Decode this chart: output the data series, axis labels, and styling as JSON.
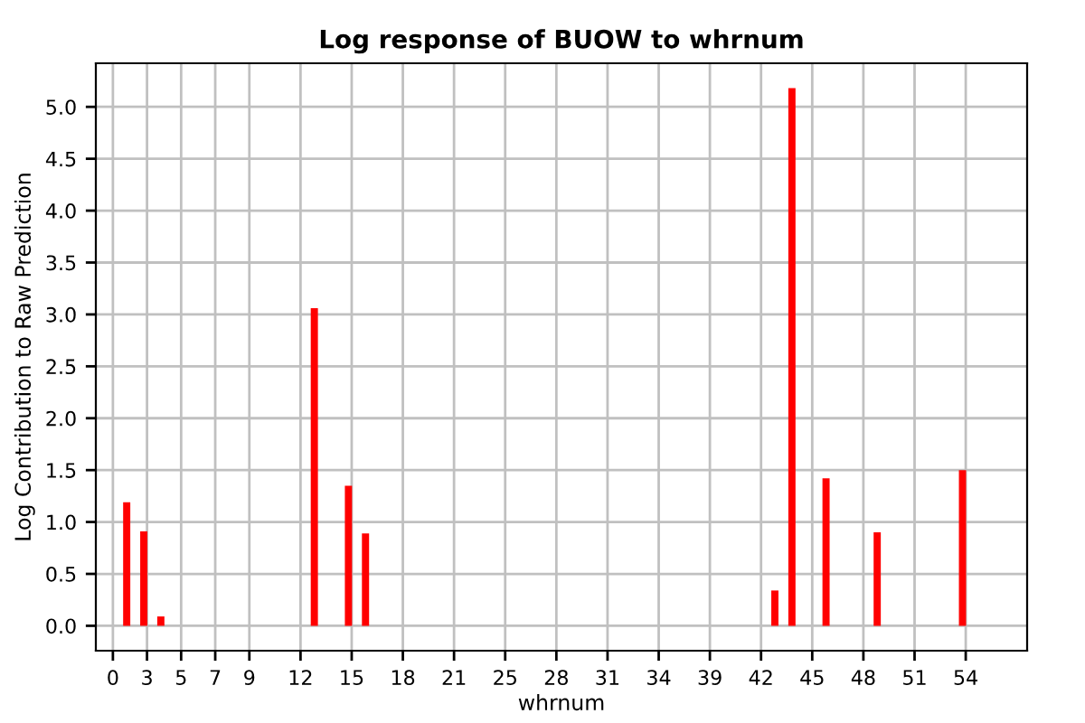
{
  "chart_data": {
    "type": "bar",
    "title": "Log response of BUOW to whrnum",
    "xlabel": "whrnum",
    "ylabel": "Log Contribution to Raw Prediction",
    "categories": [
      "0",
      null,
      "3",
      null,
      "5",
      null,
      "7",
      null,
      "9",
      null,
      null,
      "12",
      null,
      null,
      "15",
      null,
      null,
      "18",
      null,
      null,
      "21",
      null,
      null,
      "25",
      null,
      null,
      "28",
      null,
      null,
      "31",
      null,
      null,
      "34",
      null,
      null,
      "39",
      null,
      null,
      "42",
      null,
      null,
      "45",
      null,
      null,
      "48",
      null,
      null,
      "51",
      null,
      null,
      "54"
    ],
    "values": [
      null,
      1.19,
      0.91,
      0.09,
      null,
      null,
      null,
      null,
      null,
      null,
      null,
      null,
      3.06,
      null,
      1.35,
      0.89,
      null,
      null,
      null,
      null,
      null,
      null,
      null,
      null,
      null,
      null,
      null,
      null,
      null,
      null,
      null,
      null,
      null,
      null,
      null,
      null,
      null,
      null,
      null,
      0.34,
      5.18,
      null,
      1.42,
      null,
      null,
      0.9,
      null,
      null,
      null,
      null,
      1.5
    ],
    "color": "#ff0000",
    "ylim": [
      -0.24,
      5.42
    ],
    "yticks": [
      {
        "value": 0,
        "label": "0.0"
      },
      {
        "value": 0.5,
        "label": "0.5"
      },
      {
        "value": 1,
        "label": "1.0"
      },
      {
        "value": 1.5,
        "label": "1.5"
      },
      {
        "value": 2,
        "label": "2.0"
      },
      {
        "value": 2.5,
        "label": "2.5"
      },
      {
        "value": 3,
        "label": "3.0"
      },
      {
        "value": 3.5,
        "label": "3.5"
      },
      {
        "value": 4,
        "label": "4.0"
      },
      {
        "value": 4.5,
        "label": "4.5"
      },
      {
        "value": 5,
        "label": "5.0"
      }
    ],
    "grid": true
  }
}
